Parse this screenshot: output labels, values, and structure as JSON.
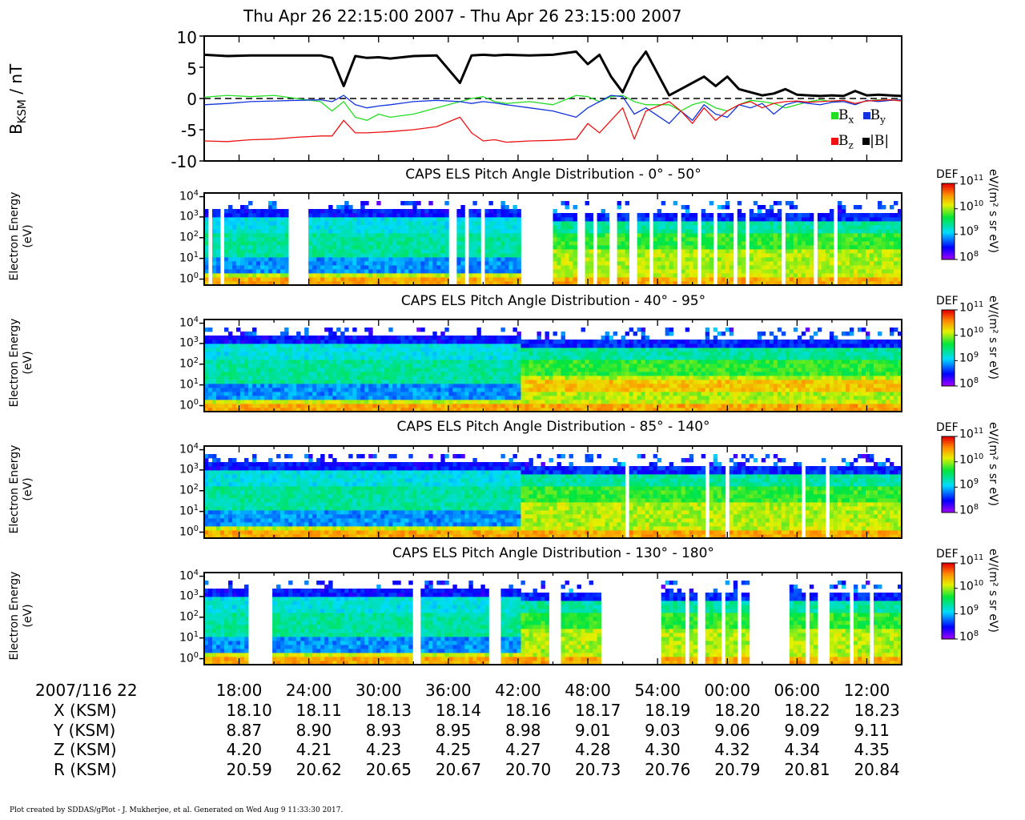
{
  "title": "Thu Apr 26 22:15:00 2007 - Thu Apr 26 23:15:00 2007",
  "footer": "Plot created by SDDAS/gPlot - J. Mukherjee, et al.  Generated on Wed Aug 9 11:33:30 2017.",
  "colors": {
    "bx": "#22dd22",
    "by": "#1133dd",
    "bz": "#ee1111",
    "btot": "#000000"
  },
  "chart_data": [
    {
      "type": "line",
      "ylabel_main": "B",
      "ylabel_sub": "KSM",
      "ylabel_unit": " / nT",
      "ylim": [
        -10,
        10
      ],
      "yticks": [
        "10",
        "5",
        "0",
        "-5",
        "-10"
      ],
      "zero_line": "dashed",
      "legend": [
        {
          "label": "B",
          "sub": "x",
          "color": "#22dd22"
        },
        {
          "label": "B",
          "sub": "y",
          "color": "#1133dd"
        },
        {
          "label": "B",
          "sub": "z",
          "color": "#ee1111"
        },
        {
          "label": "|B|",
          "sub": "",
          "color": "#000000"
        }
      ],
      "x_minutes": [
        0,
        2,
        4,
        6,
        8,
        10,
        11,
        12,
        13,
        14,
        15,
        16,
        18,
        20,
        22,
        23,
        24,
        25,
        26,
        28,
        30,
        32,
        33,
        34,
        35,
        36,
        37,
        38,
        40,
        41,
        42,
        43,
        44,
        45,
        46,
        47,
        48,
        49,
        50,
        51,
        52,
        53,
        54,
        55,
        56,
        57,
        58,
        59,
        60
      ],
      "series": [
        {
          "name": "|B|",
          "values": [
            7.0,
            6.8,
            6.9,
            6.9,
            6.9,
            6.9,
            6.5,
            2.0,
            6.8,
            6.5,
            6.6,
            6.4,
            6.8,
            6.9,
            2.5,
            6.9,
            7.0,
            6.9,
            7.0,
            6.9,
            7.0,
            7.5,
            5.5,
            7.0,
            3.5,
            1.0,
            5.0,
            7.5,
            0.5,
            1.5,
            2.5,
            3.5,
            2.0,
            3.5,
            1.5,
            1.0,
            0.5,
            0.8,
            1.5,
            0.6,
            0.5,
            0.4,
            0.5,
            0.4,
            1.2,
            0.5,
            0.6,
            0.5,
            0.4
          ]
        },
        {
          "name": "Bx",
          "values": [
            0.2,
            0.5,
            0.3,
            0.5,
            0.0,
            -0.5,
            -2.0,
            -0.5,
            -3.0,
            -3.5,
            -2.5,
            -3.0,
            -2.5,
            -1.5,
            -0.5,
            0.0,
            0.3,
            -0.5,
            -0.8,
            -0.5,
            -1.0,
            0.5,
            0.3,
            -0.5,
            0.3,
            0.5,
            -0.5,
            -1.0,
            -1.0,
            -2.0,
            -1.0,
            -0.5,
            -1.5,
            -2.0,
            -1.0,
            -0.3,
            -0.5,
            -0.8,
            -1.5,
            -1.0,
            -0.5,
            -0.2,
            -0.5,
            -0.3,
            -0.8,
            -0.4,
            -0.2,
            -0.3,
            -0.2
          ]
        },
        {
          "name": "By",
          "values": [
            -1.0,
            -0.8,
            -0.5,
            -0.4,
            -0.3,
            -0.2,
            -0.5,
            0.5,
            -1.0,
            -1.5,
            -1.2,
            -1.0,
            -0.5,
            -0.3,
            -0.5,
            -0.8,
            -0.5,
            -0.7,
            -1.0,
            -1.5,
            -2.0,
            -3.0,
            -1.5,
            -0.5,
            0.5,
            0.3,
            -2.5,
            -1.5,
            -4.0,
            -2.0,
            -3.5,
            -1.0,
            -2.5,
            -3.0,
            -1.0,
            -1.5,
            -0.8,
            -2.5,
            -1.0,
            -0.5,
            -0.8,
            -1.0,
            -0.6,
            -0.5,
            -1.0,
            -0.3,
            -0.5,
            -0.3,
            -0.2
          ]
        },
        {
          "name": "Bz",
          "values": [
            -6.8,
            -6.9,
            -6.6,
            -6.5,
            -6.2,
            -6.0,
            -6.0,
            -3.5,
            -5.5,
            -5.5,
            -5.4,
            -5.3,
            -5.0,
            -4.5,
            -3.0,
            -5.5,
            -6.8,
            -6.6,
            -7.0,
            -6.8,
            -6.7,
            -6.5,
            -4.0,
            -5.5,
            -3.5,
            -1.5,
            -6.5,
            -2.0,
            -0.5,
            -2.0,
            -4.0,
            -1.5,
            -3.5,
            -2.0,
            -1.0,
            -0.5,
            -1.5,
            -0.8,
            -0.5,
            -0.4,
            -0.6,
            -0.5,
            -0.4,
            -0.3,
            -0.8,
            -0.4,
            -0.3,
            -0.2,
            -0.4
          ]
        }
      ]
    },
    {
      "type": "heatmap",
      "title": "CAPS ELS Pitch Angle Distribution - 0° - 50°",
      "ylabel": [
        "Electron Energy",
        "(eV)"
      ],
      "yscale": "log",
      "yticks": [
        "4",
        "3",
        "2",
        "1",
        "0"
      ],
      "colorbar_label": "DEF",
      "colorbar_unit": "eV/(m² s sr eV)",
      "colorbar_ticks": [
        "11",
        "10",
        "9",
        "8"
      ],
      "data_gaps_minutes": [
        [
          0.3,
          0.6
        ],
        [
          1.2,
          1.4
        ],
        [
          7.2,
          8.8
        ],
        [
          21.0,
          21.6
        ],
        [
          22.2,
          22.6
        ],
        [
          23.5,
          24.0
        ],
        [
          27.0,
          30.0
        ],
        [
          32.0,
          32.6
        ],
        [
          33.2,
          33.5
        ],
        [
          34.5,
          35.5
        ],
        [
          36.5,
          37.0
        ],
        [
          38.0,
          38.6
        ],
        [
          40.4,
          40.8
        ],
        [
          42.2,
          42.6
        ],
        [
          43.6,
          44.0
        ],
        [
          45.5,
          45.8
        ],
        [
          46.4,
          46.8
        ],
        [
          49.4,
          49.8
        ],
        [
          52.2,
          52.6
        ],
        [
          53.8,
          54.4
        ]
      ]
    },
    {
      "type": "heatmap",
      "title": "CAPS ELS Pitch Angle Distribution - 40° - 95°",
      "ylabel": [
        "Electron Energy",
        "(eV)"
      ],
      "yscale": "log",
      "yticks": [
        "4",
        "3",
        "2",
        "1",
        "0"
      ],
      "colorbar_label": "DEF",
      "colorbar_unit": "eV/(m² s sr eV)",
      "colorbar_ticks": [
        "11",
        "10",
        "9",
        "8"
      ],
      "data_gaps_minutes": [
        [
          35.4,
          35.5
        ],
        [
          52.6,
          52.7
        ]
      ]
    },
    {
      "type": "heatmap",
      "title": "CAPS ELS Pitch Angle Distribution - 85° - 140°",
      "ylabel": [
        "Electron Energy",
        "(eV)"
      ],
      "yscale": "log",
      "yticks": [
        "4",
        "3",
        "2",
        "1",
        "0"
      ],
      "colorbar_label": "DEF",
      "colorbar_unit": "eV/(m² s sr eV)",
      "colorbar_ticks": [
        "11",
        "10",
        "9",
        "8"
      ],
      "data_gaps_minutes": [
        [
          36.2,
          36.4
        ],
        [
          37.0,
          37.2
        ],
        [
          43.0,
          43.2
        ],
        [
          43.8,
          44.0
        ],
        [
          44.6,
          44.9
        ],
        [
          51.2,
          51.4
        ],
        [
          53.4,
          53.6
        ]
      ]
    },
    {
      "type": "heatmap",
      "title": "CAPS ELS Pitch Angle Distribution - 130° - 180°",
      "ylabel": [
        "Electron Energy",
        "(eV)"
      ],
      "yscale": "log",
      "yticks": [
        "4",
        "3",
        "2",
        "1",
        "0"
      ],
      "colorbar_label": "DEF",
      "colorbar_unit": "eV/(m² s sr eV)",
      "colorbar_ticks": [
        "11",
        "10",
        "9",
        "8"
      ],
      "data_gaps_minutes": [
        [
          3.6,
          5.8
        ],
        [
          17.6,
          18.6
        ],
        [
          24.4,
          25.2
        ],
        [
          29.5,
          30.5
        ],
        [
          33.8,
          39.0
        ],
        [
          41.2,
          41.6
        ],
        [
          42.4,
          42.8
        ],
        [
          44.2,
          44.6
        ],
        [
          45.8,
          46.2
        ],
        [
          46.8,
          50.2
        ],
        [
          50.8,
          51.0
        ],
        [
          51.4,
          51.8
        ],
        [
          52.6,
          53.6
        ],
        [
          55.4,
          55.8
        ],
        [
          57.0,
          57.4
        ]
      ]
    }
  ],
  "ticks_table": {
    "header": "2007/116 22",
    "times": [
      "18:00",
      "24:00",
      "30:00",
      "36:00",
      "42:00",
      "48:00",
      "54:00",
      "00:00",
      "06:00",
      "12:00"
    ],
    "rows": [
      {
        "label": "X (KSM)",
        "values": [
          "18.10",
          "18.11",
          "18.13",
          "18.14",
          "18.16",
          "18.17",
          "18.19",
          "18.20",
          "18.22",
          "18.23"
        ]
      },
      {
        "label": "Y (KSM)",
        "values": [
          "8.87",
          "8.90",
          "8.93",
          "8.95",
          "8.98",
          "9.01",
          "9.03",
          "9.06",
          "9.09",
          "9.11"
        ]
      },
      {
        "label": "Z (KSM)",
        "values": [
          "4.20",
          "4.21",
          "4.23",
          "4.25",
          "4.27",
          "4.28",
          "4.30",
          "4.32",
          "4.34",
          "4.35"
        ]
      },
      {
        "label": "R (KSM)",
        "values": [
          "20.59",
          "20.62",
          "20.65",
          "20.67",
          "20.70",
          "20.73",
          "20.76",
          "20.79",
          "20.81",
          "20.84"
        ]
      }
    ]
  }
}
